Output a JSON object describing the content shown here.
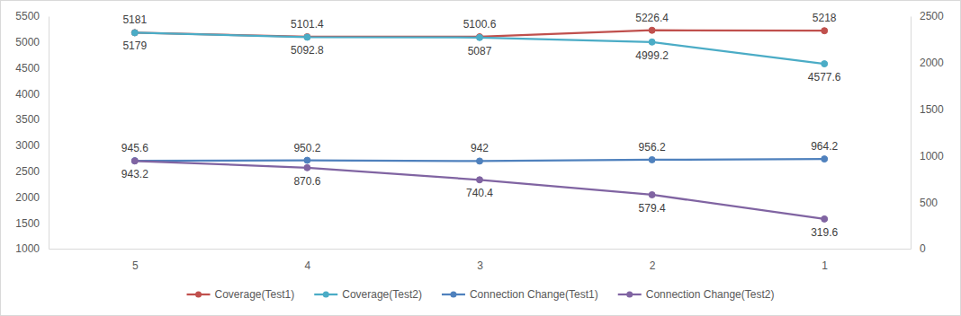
{
  "chart_data": {
    "type": "line",
    "categories": [
      "5",
      "4",
      "3",
      "2",
      "1"
    ],
    "series": [
      {
        "name": "Coverage(Test1)",
        "color": "#c0504d",
        "axis": "y",
        "values": [
          5181,
          5101.4,
          5100.6,
          5226.4,
          5218
        ]
      },
      {
        "name": "Coverage(Test2)",
        "color": "#4bacc6",
        "axis": "y",
        "values": [
          5179,
          5092.8,
          5087,
          4999.2,
          4577.6
        ]
      },
      {
        "name": "Connection Change(Test1)",
        "color": "#4f81bd",
        "axis": "y2",
        "values": [
          945.6,
          950.2,
          942,
          956.2,
          964.2
        ]
      },
      {
        "name": "Connection Change(Test2)",
        "color": "#8064a2",
        "axis": "y2",
        "values": [
          943.2,
          870.6,
          740.4,
          579.4,
          319.6
        ]
      }
    ],
    "ylim": [
      1000,
      5500
    ],
    "yticks": [
      1000,
      1500,
      2000,
      2500,
      3000,
      3500,
      4000,
      4500,
      5000,
      5500
    ],
    "y2lim": [
      0,
      2500
    ],
    "y2ticks": [
      0,
      500,
      1000,
      1500,
      2000,
      2500
    ],
    "data_labels": true,
    "legend": "bottom",
    "marker": "circle"
  }
}
